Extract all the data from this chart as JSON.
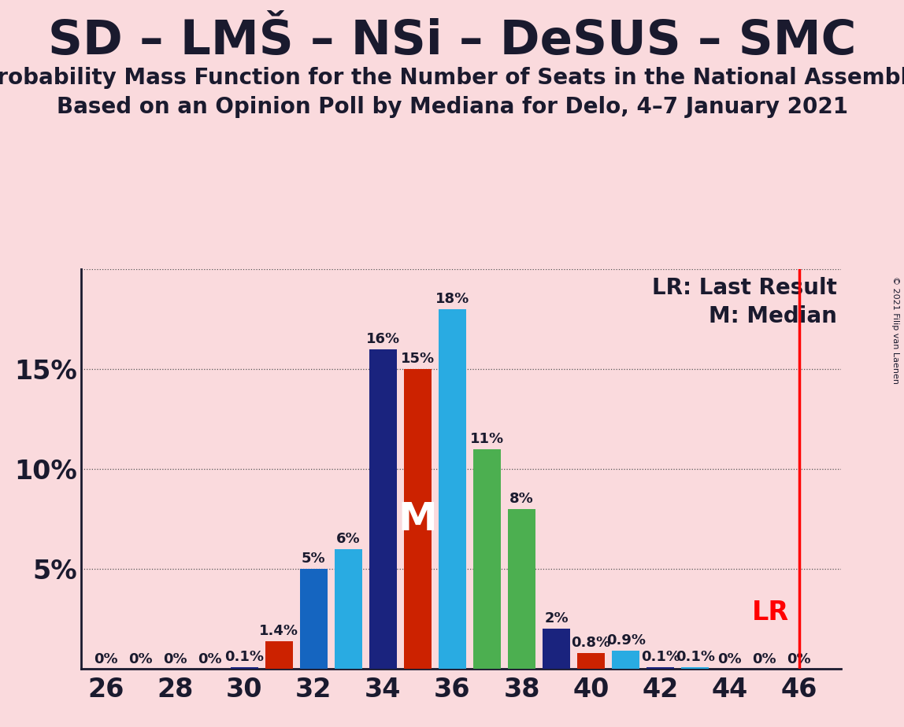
{
  "title": "SD – LMŠ – NSi – DeSUS – SMC",
  "subtitle1": "Probability Mass Function for the Number of Seats in the National Assembly",
  "subtitle2": "Based on an Opinion Poll by Mediana for Delo, 4–7 January 2021",
  "copyright": "© 2021 Filip van Laenen",
  "background_color": "#fadadd",
  "x_values": [
    26,
    27,
    28,
    29,
    30,
    31,
    32,
    33,
    34,
    35,
    36,
    37,
    38,
    39,
    40,
    41,
    42,
    43,
    44,
    45,
    46
  ],
  "y_values": [
    0.0,
    0.0,
    0.0,
    0.0,
    0.1,
    1.4,
    5.0,
    6.0,
    16.0,
    15.0,
    18.0,
    11.0,
    8.0,
    2.0,
    0.8,
    0.9,
    0.1,
    0.1,
    0.0,
    0.0,
    0.0
  ],
  "bar_colors": [
    "#1a237e",
    "#cc2200",
    "#1565c0",
    "#29abe2",
    "#1a237e",
    "#cc2200",
    "#1565c0",
    "#29abe2",
    "#1a237e",
    "#cc2200",
    "#29abe2",
    "#4caf50",
    "#4caf50",
    "#1a237e",
    "#cc2200",
    "#29abe2",
    "#1a237e",
    "#29abe2",
    "#cc2200",
    "#4caf50",
    "#1a237e"
  ],
  "labels": [
    "0%",
    "0%",
    "0%",
    "0%",
    "0.1%",
    "1.4%",
    "5%",
    "6%",
    "16%",
    "15%",
    "18%",
    "11%",
    "8%",
    "2%",
    "0.8%",
    "0.9%",
    "0.1%",
    "0.1%",
    "0%",
    "0%",
    "0%"
  ],
  "median_seat": 35,
  "lr_seat": 46,
  "lr_label": "LR",
  "lr_line_color": "#ff0000",
  "lr_text_color": "#ff0000",
  "ytick_labels": [
    "",
    "5%",
    "10%",
    "15%",
    ""
  ],
  "ytick_values": [
    0,
    5,
    10,
    15,
    20
  ],
  "ylim": [
    0,
    20
  ],
  "xlim_left": 25.3,
  "xlim_right": 47.2,
  "title_fontsize": 44,
  "subtitle_fontsize": 20,
  "bar_label_fontsize": 13,
  "tick_fontsize": 24,
  "legend_fontsize": 20,
  "median_label": "M",
  "median_label_color": "#ffffff",
  "median_label_fontsize": 36,
  "grid_color": "#555555",
  "axis_color": "#1a1a2e",
  "text_color": "#1a1a2e",
  "lr_fontsize": 20
}
